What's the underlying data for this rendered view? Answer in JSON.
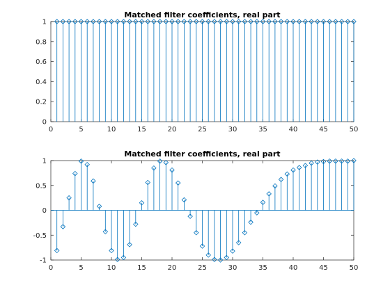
{
  "colors": {
    "series": "#0072bd",
    "axes": "#262626",
    "background": "#ffffff"
  },
  "chart_data": [
    {
      "type": "stem",
      "title": "Matched filter coefficients, real part",
      "xlabel": "",
      "ylabel": "",
      "xlim": [
        0,
        50
      ],
      "ylim": [
        0,
        1
      ],
      "xticks": [
        "0",
        "5",
        "10",
        "15",
        "20",
        "25",
        "30",
        "35",
        "40",
        "45",
        "50"
      ],
      "yticks": [
        "0",
        "0.2",
        "0.4",
        "0.6",
        "0.8",
        "1"
      ],
      "grid": false,
      "marker": "diamond",
      "x": [
        1,
        2,
        3,
        4,
        5,
        6,
        7,
        8,
        9,
        10,
        11,
        12,
        13,
        14,
        15,
        16,
        17,
        18,
        19,
        20,
        21,
        22,
        23,
        24,
        25,
        26,
        27,
        28,
        29,
        30,
        31,
        32,
        33,
        34,
        35,
        36,
        37,
        38,
        39,
        40,
        41,
        42,
        43,
        44,
        45,
        46,
        47,
        48,
        49,
        50
      ],
      "values": [
        1,
        1,
        1,
        1,
        1,
        1,
        1,
        1,
        1,
        1,
        1,
        1,
        1,
        1,
        1,
        1,
        1,
        1,
        1,
        1,
        1,
        1,
        1,
        1,
        1,
        1,
        1,
        1,
        1,
        1,
        1,
        1,
        1,
        1,
        1,
        1,
        1,
        1,
        1,
        1,
        1,
        1,
        1,
        1,
        1,
        1,
        1,
        1,
        1,
        1
      ]
    },
    {
      "type": "stem",
      "title": "Matched filter coefficients, real part",
      "xlabel": "",
      "ylabel": "",
      "xlim": [
        0,
        50
      ],
      "ylim": [
        -1,
        1
      ],
      "xticks": [
        "0",
        "5",
        "10",
        "15",
        "20",
        "25",
        "30",
        "35",
        "40",
        "45",
        "50"
      ],
      "yticks": [
        "-1",
        "-0.5",
        "0",
        "0.5",
        "1"
      ],
      "grid": false,
      "marker": "diamond",
      "x": [
        1,
        2,
        3,
        4,
        5,
        6,
        7,
        8,
        9,
        10,
        11,
        12,
        13,
        14,
        15,
        16,
        17,
        18,
        19,
        20,
        21,
        22,
        23,
        24,
        25,
        26,
        27,
        28,
        29,
        30,
        31,
        32,
        33,
        34,
        35,
        36,
        37,
        38,
        39,
        40,
        41,
        42,
        43,
        44,
        45,
        46,
        47,
        48,
        49,
        50
      ],
      "values": [
        -0.81,
        -0.33,
        0.25,
        0.74,
        0.99,
        0.92,
        0.59,
        0.08,
        -0.43,
        -0.81,
        -0.99,
        -0.95,
        -0.69,
        -0.28,
        0.15,
        0.56,
        0.85,
        0.99,
        0.96,
        0.81,
        0.55,
        0.21,
        -0.12,
        -0.45,
        -0.72,
        -0.9,
        -0.99,
        -1.0,
        -0.95,
        -0.82,
        -0.65,
        -0.45,
        -0.24,
        -0.05,
        0.16,
        0.33,
        0.49,
        0.62,
        0.73,
        0.81,
        0.86,
        0.9,
        0.95,
        0.97,
        0.98,
        0.99,
        0.99,
        0.99,
        0.99,
        1.0
      ]
    }
  ]
}
